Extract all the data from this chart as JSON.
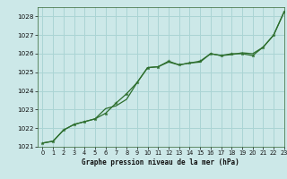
{
  "title": "Graphe pression niveau de la mer (hPa)",
  "bg_color": "#cce8e8",
  "grid_color": "#aad4d4",
  "line_color": "#2d6e2d",
  "xlim": [
    -0.5,
    23
  ],
  "ylim": [
    1021.0,
    1028.5
  ],
  "yticks": [
    1021,
    1022,
    1023,
    1024,
    1025,
    1026,
    1027,
    1028
  ],
  "xticks": [
    0,
    1,
    2,
    3,
    4,
    5,
    6,
    7,
    8,
    9,
    10,
    11,
    12,
    13,
    14,
    15,
    16,
    17,
    18,
    19,
    20,
    21,
    22,
    23
  ],
  "line1_x": [
    0,
    1,
    2,
    3,
    4,
    5,
    6,
    7,
    8,
    9,
    10,
    11,
    12,
    13,
    14,
    15,
    16,
    17,
    18,
    19,
    20,
    21,
    22,
    23
  ],
  "line1_y": [
    1021.2,
    1021.3,
    1021.9,
    1022.2,
    1022.35,
    1022.5,
    1022.8,
    1023.35,
    1023.85,
    1024.45,
    1025.25,
    1025.3,
    1025.6,
    1025.4,
    1025.5,
    1025.6,
    1026.0,
    1025.9,
    1026.0,
    1026.0,
    1025.9,
    1026.35,
    1027.0,
    1028.25
  ],
  "line2_x": [
    0,
    1,
    2,
    3,
    4,
    5,
    6,
    7,
    8,
    9,
    10,
    11,
    12,
    13,
    14,
    15,
    16,
    17,
    18,
    19,
    20,
    21,
    22,
    23
  ],
  "line2_y": [
    1021.2,
    1021.3,
    1021.9,
    1022.2,
    1022.35,
    1022.5,
    1023.05,
    1023.2,
    1023.55,
    1024.45,
    1025.25,
    1025.3,
    1025.55,
    1025.4,
    1025.5,
    1025.55,
    1026.0,
    1025.9,
    1025.95,
    1026.05,
    1026.0,
    1026.35,
    1027.0,
    1028.25
  ]
}
